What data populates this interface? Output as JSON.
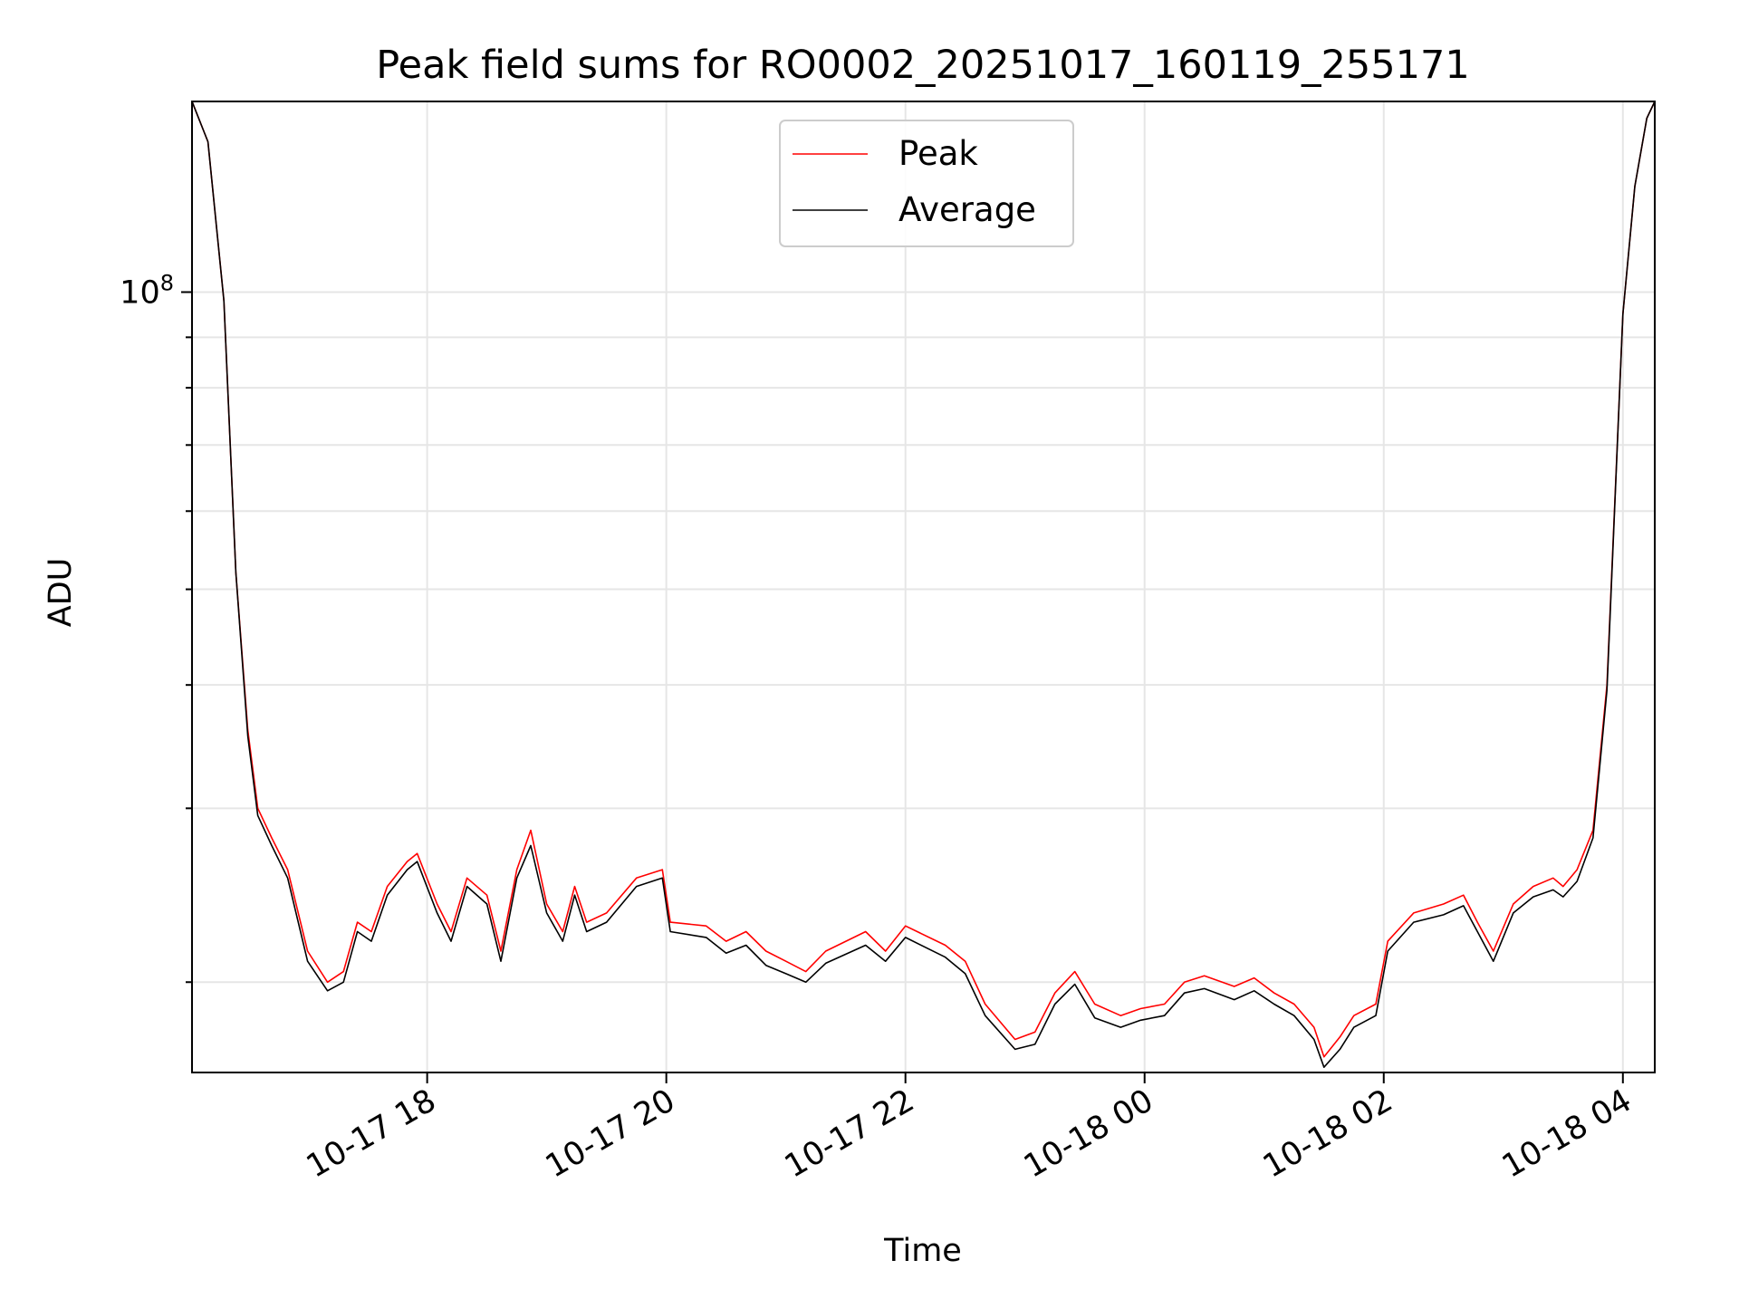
{
  "chart_data": {
    "type": "line",
    "title": "Peak field sums for RO0002_20251017_160119_255171",
    "xlabel": "Time",
    "ylabel": "ADU",
    "x_axis": {
      "type": "datetime",
      "range": [
        "2025-10-17 16:02",
        "2025-10-18 04:16"
      ],
      "ticks": [
        {
          "value": "2025-10-17 18:00",
          "label": "10-17 18"
        },
        {
          "value": "2025-10-17 20:00",
          "label": "10-17 20"
        },
        {
          "value": "2025-10-17 22:00",
          "label": "10-17 22"
        },
        {
          "value": "2025-10-18 00:00",
          "label": "10-18 00"
        },
        {
          "value": "2025-10-18 02:00",
          "label": "10-18 02"
        },
        {
          "value": "2025-10-18 04:00",
          "label": "10-18 04"
        }
      ]
    },
    "y_axis": {
      "scale": "log",
      "range": [
        16200000,
        156000000
      ],
      "major_tick": {
        "value": 100000000,
        "label_base": "10",
        "label_exp": "8"
      },
      "minor_ticks": [
        20000000,
        30000000,
        40000000,
        50000000,
        60000000,
        70000000,
        80000000,
        90000000,
        200000000
      ]
    },
    "grid": true,
    "legend": {
      "position": "upper-center",
      "entries": [
        "Peak",
        "Average"
      ]
    },
    "series": [
      {
        "name": "Peak",
        "color": "#ff0000",
        "x": [
          "2025-10-17 16:02",
          "2025-10-17 16:10",
          "2025-10-17 16:18",
          "2025-10-17 16:24",
          "2025-10-17 16:30",
          "2025-10-17 16:35",
          "2025-10-17 16:42",
          "2025-10-17 16:50",
          "2025-10-17 17:00",
          "2025-10-17 17:10",
          "2025-10-17 17:18",
          "2025-10-17 17:25",
          "2025-10-17 17:32",
          "2025-10-17 17:40",
          "2025-10-17 17:50",
          "2025-10-17 17:55",
          "2025-10-17 18:05",
          "2025-10-17 18:12",
          "2025-10-17 18:20",
          "2025-10-17 18:30",
          "2025-10-17 18:37",
          "2025-10-17 18:45",
          "2025-10-17 18:52",
          "2025-10-17 19:00",
          "2025-10-17 19:08",
          "2025-10-17 19:14",
          "2025-10-17 19:20",
          "2025-10-17 19:30",
          "2025-10-17 19:45",
          "2025-10-17 19:58",
          "2025-10-17 20:02",
          "2025-10-17 20:20",
          "2025-10-17 20:30",
          "2025-10-17 20:40",
          "2025-10-17 20:50",
          "2025-10-17 21:00",
          "2025-10-17 21:10",
          "2025-10-17 21:20",
          "2025-10-17 21:40",
          "2025-10-17 21:50",
          "2025-10-17 22:00",
          "2025-10-17 22:20",
          "2025-10-17 22:30",
          "2025-10-17 22:40",
          "2025-10-17 22:55",
          "2025-10-17 23:05",
          "2025-10-17 23:15",
          "2025-10-17 23:25",
          "2025-10-17 23:35",
          "2025-10-17 23:48",
          "2025-10-17 23:58",
          "2025-10-18 00:10",
          "2025-10-18 00:20",
          "2025-10-18 00:30",
          "2025-10-18 00:45",
          "2025-10-18 00:55",
          "2025-10-18 01:05",
          "2025-10-18 01:15",
          "2025-10-18 01:25",
          "2025-10-18 01:30",
          "2025-10-18 01:38",
          "2025-10-18 01:45",
          "2025-10-18 01:56",
          "2025-10-18 02:02",
          "2025-10-18 02:15",
          "2025-10-18 02:30",
          "2025-10-18 02:40",
          "2025-10-18 02:47",
          "2025-10-18 02:55",
          "2025-10-18 03:05",
          "2025-10-18 03:15",
          "2025-10-18 03:25",
          "2025-10-18 03:30",
          "2025-10-18 03:37",
          "2025-10-18 03:45",
          "2025-10-18 03:52",
          "2025-10-18 04:00",
          "2025-10-18 04:06",
          "2025-10-18 04:12",
          "2025-10-18 04:16"
        ],
        "values": [
          158000000,
          142000000,
          98000000,
          52000000,
          36000000,
          30000000,
          28000000,
          26000000,
          21500000,
          20000000,
          20500000,
          23000000,
          22500000,
          25000000,
          26500000,
          27000000,
          24000000,
          22500000,
          25500000,
          24500000,
          21500000,
          26000000,
          28500000,
          24000000,
          22500000,
          25000000,
          23000000,
          23500000,
          25500000,
          26000000,
          23000000,
          22800000,
          22000000,
          22500000,
          21500000,
          21000000,
          20500000,
          21500000,
          22500000,
          21500000,
          22800000,
          21800000,
          21000000,
          19000000,
          17500000,
          17800000,
          19500000,
          20500000,
          19000000,
          18500000,
          18800000,
          19000000,
          20000000,
          20300000,
          19800000,
          20200000,
          19500000,
          19000000,
          18000000,
          16800000,
          17600000,
          18500000,
          19000000,
          22000000,
          23500000,
          24000000,
          24500000,
          23000000,
          21500000,
          24000000,
          25000000,
          25500000,
          25000000,
          26000000,
          28500000,
          40000000,
          95000000,
          128000000,
          150000000,
          158000000
        ]
      },
      {
        "name": "Average",
        "color": "#000000",
        "x": [
          "2025-10-17 16:02",
          "2025-10-17 16:10",
          "2025-10-17 16:18",
          "2025-10-17 16:24",
          "2025-10-17 16:30",
          "2025-10-17 16:35",
          "2025-10-17 16:42",
          "2025-10-17 16:50",
          "2025-10-17 17:00",
          "2025-10-17 17:10",
          "2025-10-17 17:18",
          "2025-10-17 17:25",
          "2025-10-17 17:32",
          "2025-10-17 17:40",
          "2025-10-17 17:50",
          "2025-10-17 17:55",
          "2025-10-17 18:05",
          "2025-10-17 18:12",
          "2025-10-17 18:20",
          "2025-10-17 18:30",
          "2025-10-17 18:37",
          "2025-10-17 18:45",
          "2025-10-17 18:52",
          "2025-10-17 19:00",
          "2025-10-17 19:08",
          "2025-10-17 19:14",
          "2025-10-17 19:20",
          "2025-10-17 19:30",
          "2025-10-17 19:45",
          "2025-10-17 19:58",
          "2025-10-17 20:02",
          "2025-10-17 20:20",
          "2025-10-17 20:30",
          "2025-10-17 20:40",
          "2025-10-17 20:50",
          "2025-10-17 21:00",
          "2025-10-17 21:10",
          "2025-10-17 21:20",
          "2025-10-17 21:40",
          "2025-10-17 21:50",
          "2025-10-17 22:00",
          "2025-10-17 22:20",
          "2025-10-17 22:30",
          "2025-10-17 22:40",
          "2025-10-17 22:55",
          "2025-10-17 23:05",
          "2025-10-17 23:15",
          "2025-10-17 23:25",
          "2025-10-17 23:35",
          "2025-10-17 23:48",
          "2025-10-17 23:58",
          "2025-10-18 00:10",
          "2025-10-18 00:20",
          "2025-10-18 00:30",
          "2025-10-18 00:45",
          "2025-10-18 00:55",
          "2025-10-18 01:05",
          "2025-10-18 01:15",
          "2025-10-18 01:25",
          "2025-10-18 01:30",
          "2025-10-18 01:38",
          "2025-10-18 01:45",
          "2025-10-18 01:56",
          "2025-10-18 02:02",
          "2025-10-18 02:15",
          "2025-10-18 02:30",
          "2025-10-18 02:40",
          "2025-10-18 02:47",
          "2025-10-18 02:55",
          "2025-10-18 03:05",
          "2025-10-18 03:15",
          "2025-10-18 03:25",
          "2025-10-18 03:30",
          "2025-10-18 03:37",
          "2025-10-18 03:45",
          "2025-10-18 03:52",
          "2025-10-18 04:00",
          "2025-10-18 04:06",
          "2025-10-18 04:12",
          "2025-10-18 04:16"
        ],
        "values": [
          158000000,
          142000000,
          98000000,
          52000000,
          35500000,
          29500000,
          27500000,
          25500000,
          21000000,
          19600000,
          20000000,
          22500000,
          22000000,
          24500000,
          26000000,
          26500000,
          23500000,
          22000000,
          25000000,
          24000000,
          21000000,
          25500000,
          27500000,
          23500000,
          22000000,
          24500000,
          22500000,
          23000000,
          25000000,
          25500000,
          22500000,
          22200000,
          21400000,
          21800000,
          20800000,
          20400000,
          20000000,
          20900000,
          21800000,
          21000000,
          22200000,
          21200000,
          20400000,
          18500000,
          17100000,
          17300000,
          19000000,
          19900000,
          18400000,
          18000000,
          18300000,
          18500000,
          19500000,
          19700000,
          19200000,
          19600000,
          19000000,
          18500000,
          17500000,
          16400000,
          17100000,
          18000000,
          18500000,
          21500000,
          23000000,
          23400000,
          23900000,
          22500000,
          21000000,
          23500000,
          24400000,
          24800000,
          24400000,
          25300000,
          28000000,
          39500000,
          95000000,
          128000000,
          150000000,
          158000000
        ]
      }
    ]
  }
}
